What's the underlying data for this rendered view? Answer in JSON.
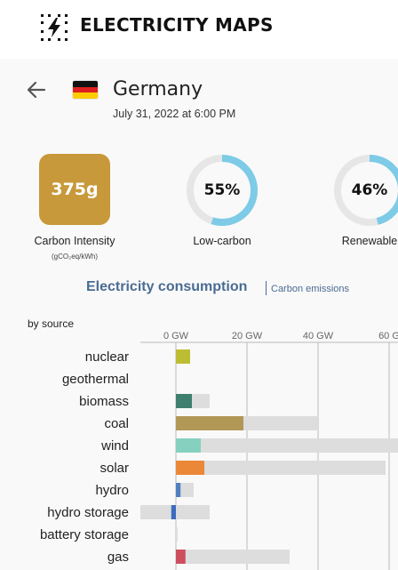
{
  "app": {
    "title": "ELECTRICITY MAPS",
    "icon": "lightning-bolt-icon"
  },
  "zone": {
    "country": "Germany",
    "flag_icon": "germany-flag-icon",
    "datetime": "July 31, 2022 at 6:00 PM"
  },
  "metrics": {
    "carbon_intensity": {
      "value": "375g",
      "label": "Carbon Intensity",
      "unit": "(gCO₂eq/kWh)",
      "color": "#c8993a"
    },
    "low_carbon": {
      "value": "55%",
      "fraction": 0.55,
      "label": "Low-carbon"
    },
    "renewable": {
      "value": "46%",
      "fraction": 0.46,
      "label": "Renewable"
    },
    "donut_color": "#7dcbe6",
    "donut_track": "#e6e6e6"
  },
  "section": {
    "active_tab": "Electricity consumption",
    "other_tab": "Carbon emissions",
    "subtitle": "by source"
  },
  "chart_data": {
    "type": "bar",
    "unit": "GW",
    "x_ticks": [
      "0 GW",
      "20 GW",
      "40 GW",
      "60 G"
    ],
    "x_tick_values": [
      0,
      20,
      40,
      60
    ],
    "categories": [
      "nuclear",
      "geothermal",
      "biomass",
      "coal",
      "wind",
      "solar",
      "hydro",
      "hydro storage",
      "battery storage",
      "gas"
    ],
    "series": [
      {
        "values": [
          4.0,
          0,
          4.5,
          19.0,
          7.0,
          8.0,
          1.3,
          -1.3,
          0,
          2.7
        ]
      },
      {
        "values": [
          4.0,
          0,
          9.5,
          40.0,
          64.0,
          59.0,
          5.0,
          9.5,
          0.5,
          32.0
        ]
      }
    ],
    "colors": [
      "#bdbd34",
      "#bdbd34",
      "#3e7f6e",
      "#b39757",
      "#86d0c0",
      "#ea8838",
      "#4f81bf",
      "#3e6cbd",
      "#cccccc",
      "#cd4e5f"
    ],
    "capacity_color": "#dddddd",
    "xlim": [
      -10,
      63
    ]
  }
}
